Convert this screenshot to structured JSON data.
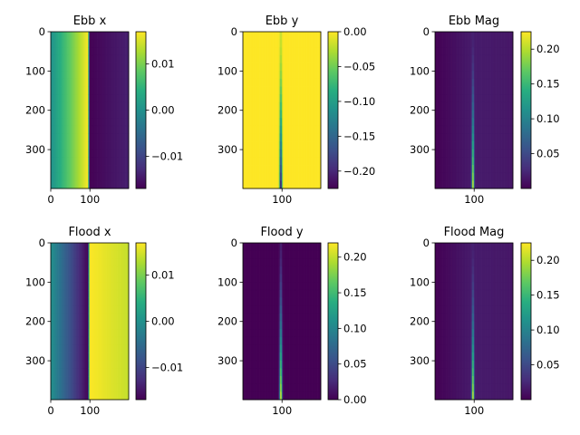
{
  "chart_data": [
    {
      "type": "heatmap",
      "title": "Ebb x",
      "field": "x",
      "sign": 1,
      "xlim": [
        0,
        199
      ],
      "ylim": [
        399,
        0
      ],
      "xticks": [
        0,
        100
      ],
      "yticks": [
        0,
        100,
        200,
        300
      ],
      "colorbar": {
        "min": -0.017,
        "max": 0.017,
        "ticks": [
          0.01,
          0.0,
          -0.01
        ],
        "labels": [
          "0.01",
          "0.00",
          "−0.01"
        ]
      }
    },
    {
      "type": "heatmap",
      "title": "Ebb y",
      "field": "y",
      "sign": -1,
      "xlim": [
        0,
        199
      ],
      "ylim": [
        399,
        0
      ],
      "xticks": [
        100
      ],
      "yticks": [
        0,
        100,
        200,
        300
      ],
      "colorbar": {
        "min": -0.225,
        "max": 0.0,
        "ticks": [
          0.0,
          -0.05,
          -0.1,
          -0.15,
          -0.2
        ],
        "labels": [
          "0.00",
          "−0.05",
          "−0.10",
          "−0.15",
          "−0.20"
        ]
      }
    },
    {
      "type": "heatmap",
      "title": "Ebb Mag",
      "field": "mag",
      "sign": 1,
      "xlim": [
        0,
        199
      ],
      "ylim": [
        399,
        0
      ],
      "xticks": [
        100
      ],
      "yticks": [
        0,
        100,
        200,
        300
      ],
      "colorbar": {
        "min": 0.0,
        "max": 0.225,
        "ticks": [
          0.2,
          0.15,
          0.1,
          0.05
        ],
        "labels": [
          "0.20",
          "0.15",
          "0.10",
          "0.05"
        ]
      }
    },
    {
      "type": "heatmap",
      "title": "Flood x",
      "field": "x",
      "sign": -1,
      "xlim": [
        0,
        199
      ],
      "ylim": [
        399,
        0
      ],
      "xticks": [
        0,
        100
      ],
      "yticks": [
        0,
        100,
        200,
        300
      ],
      "colorbar": {
        "min": -0.017,
        "max": 0.017,
        "ticks": [
          0.01,
          0.0,
          -0.01
        ],
        "labels": [
          "0.01",
          "0.00",
          "−0.01"
        ]
      }
    },
    {
      "type": "heatmap",
      "title": "Flood y",
      "field": "y",
      "sign": 1,
      "xlim": [
        0,
        199
      ],
      "ylim": [
        399,
        0
      ],
      "xticks": [
        100
      ],
      "yticks": [
        0,
        100,
        200,
        300
      ],
      "colorbar": {
        "min": 0.0,
        "max": 0.22,
        "ticks": [
          0.2,
          0.15,
          0.1,
          0.05,
          0.0
        ],
        "labels": [
          "0.20",
          "0.15",
          "0.10",
          "0.05",
          "0.00"
        ]
      }
    },
    {
      "type": "heatmap",
      "title": "Flood Mag",
      "field": "mag",
      "sign": 1,
      "xlim": [
        0,
        199
      ],
      "ylim": [
        399,
        0
      ],
      "xticks": [
        100
      ],
      "yticks": [
        0,
        100,
        200,
        300
      ],
      "colorbar": {
        "min": 0.0,
        "max": 0.225,
        "ticks": [
          0.2,
          0.15,
          0.1,
          0.05
        ],
        "labels": [
          "0.20",
          "0.15",
          "0.10",
          "0.05"
        ]
      }
    }
  ]
}
